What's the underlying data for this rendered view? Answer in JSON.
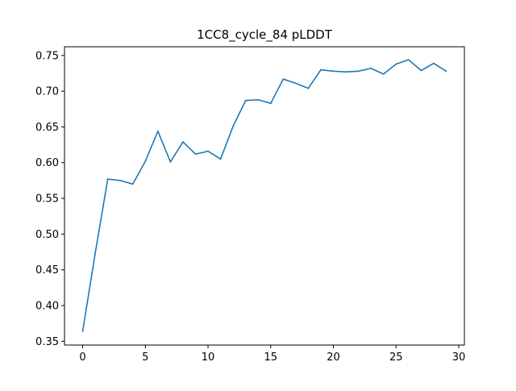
{
  "chart_data": {
    "type": "line",
    "title": "1CC8_cycle_84 pLDDT",
    "xlabel": "",
    "ylabel": "",
    "xlim": [
      -1.45,
      30.45
    ],
    "ylim": [
      0.3447,
      0.7622
    ],
    "x_ticks": [
      0,
      5,
      10,
      15,
      20,
      25,
      30
    ],
    "x_tick_labels": [
      "0",
      "5",
      "10",
      "15",
      "20",
      "25",
      "30"
    ],
    "y_ticks": [
      0.35,
      0.4,
      0.45,
      0.5,
      0.55,
      0.6,
      0.65,
      0.7,
      0.75
    ],
    "y_tick_labels": [
      "0.35",
      "0.40",
      "0.45",
      "0.50",
      "0.55",
      "0.60",
      "0.65",
      "0.70",
      "0.75"
    ],
    "grid": false,
    "legend": "none",
    "series": [
      {
        "color": "#1f77b4",
        "x": [
          0,
          1,
          2,
          3,
          4,
          5,
          6,
          7,
          8,
          9,
          10,
          11,
          12,
          13,
          14,
          15,
          16,
          17,
          18,
          19,
          20,
          21,
          22,
          23,
          24,
          25,
          26,
          27,
          28,
          29
        ],
        "y": [
          0.364,
          0.473,
          0.577,
          0.575,
          0.57,
          0.602,
          0.644,
          0.601,
          0.629,
          0.612,
          0.616,
          0.605,
          0.651,
          0.687,
          0.688,
          0.683,
          0.717,
          0.711,
          0.704,
          0.73,
          0.728,
          0.727,
          0.728,
          0.732,
          0.724,
          0.738,
          0.744,
          0.729,
          0.739,
          0.728
        ]
      }
    ]
  }
}
